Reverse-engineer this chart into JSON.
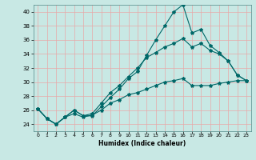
{
  "xlabel": "Humidex (Indice chaleur)",
  "bg_color": "#c8e8e4",
  "line_color": "#006868",
  "grid_color": "#e8a8a8",
  "xlim": [
    -0.5,
    23.5
  ],
  "ylim": [
    23,
    41
  ],
  "xticks": [
    0,
    1,
    2,
    3,
    4,
    5,
    6,
    7,
    8,
    9,
    10,
    11,
    12,
    13,
    14,
    15,
    16,
    17,
    18,
    19,
    20,
    21,
    22,
    23
  ],
  "yticks": [
    24,
    26,
    28,
    30,
    32,
    34,
    36,
    38,
    40
  ],
  "line1_x": [
    0,
    1,
    2,
    3,
    4,
    5,
    6,
    7,
    8,
    9,
    10,
    11,
    12,
    13,
    14,
    15,
    16,
    17,
    18,
    19,
    20,
    21,
    22,
    23
  ],
  "line1_y": [
    26.2,
    24.8,
    24.0,
    25.0,
    26.0,
    25.2,
    25.2,
    26.5,
    27.8,
    29.0,
    30.5,
    31.5,
    33.8,
    36.0,
    38.0,
    40.0,
    41.0,
    37.0,
    37.5,
    35.2,
    34.2,
    33.0,
    31.0,
    30.2
  ],
  "line2_x": [
    0,
    1,
    2,
    3,
    4,
    5,
    6,
    7,
    8,
    9,
    10,
    11,
    12,
    13,
    14,
    15,
    16,
    17,
    18,
    19,
    20,
    21,
    22,
    23
  ],
  "line2_y": [
    26.2,
    24.8,
    24.0,
    25.0,
    26.0,
    25.2,
    25.5,
    27.0,
    28.5,
    29.5,
    30.8,
    32.0,
    33.5,
    34.2,
    35.0,
    35.5,
    36.2,
    35.0,
    35.5,
    34.5,
    34.0,
    33.0,
    31.0,
    30.2
  ],
  "line3_x": [
    0,
    1,
    2,
    3,
    4,
    5,
    6,
    7,
    8,
    9,
    10,
    11,
    12,
    13,
    14,
    15,
    16,
    17,
    18,
    19,
    20,
    21,
    22,
    23
  ],
  "line3_y": [
    26.2,
    24.8,
    24.0,
    25.0,
    25.5,
    25.0,
    25.3,
    26.0,
    27.0,
    27.5,
    28.2,
    28.5,
    29.0,
    29.5,
    30.0,
    30.2,
    30.5,
    29.5,
    29.5,
    29.5,
    29.8,
    30.0,
    30.2,
    30.2
  ]
}
